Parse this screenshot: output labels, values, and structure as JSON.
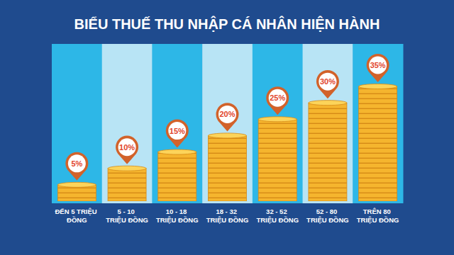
{
  "chart_data": {
    "type": "bar",
    "title": "BIỂU THUẾ THU NHẬP CÁ NHÂN HIỆN HÀNH",
    "categories": [
      "ĐẾN 5 TRIỆU ĐỒNG",
      "5 - 10 TRIỆU ĐỒNG",
      "10 - 18 TRIỆU ĐỒNG",
      "18 - 32 TRIỆU ĐỒNG",
      "32 - 52 TRIỆU ĐỒNG",
      "52 - 80 TRIỆU ĐỒNG",
      "TRÊN 80 TRIỆU ĐỒNG"
    ],
    "values": [
      5,
      10,
      15,
      20,
      25,
      30,
      35
    ],
    "value_labels": [
      "5%",
      "10%",
      "15%",
      "20%",
      "25%",
      "30%",
      "35%"
    ],
    "color": "#f5b52e",
    "ylim": [
      0,
      35
    ],
    "data_labels": true,
    "tick_labels": "x"
  }
}
